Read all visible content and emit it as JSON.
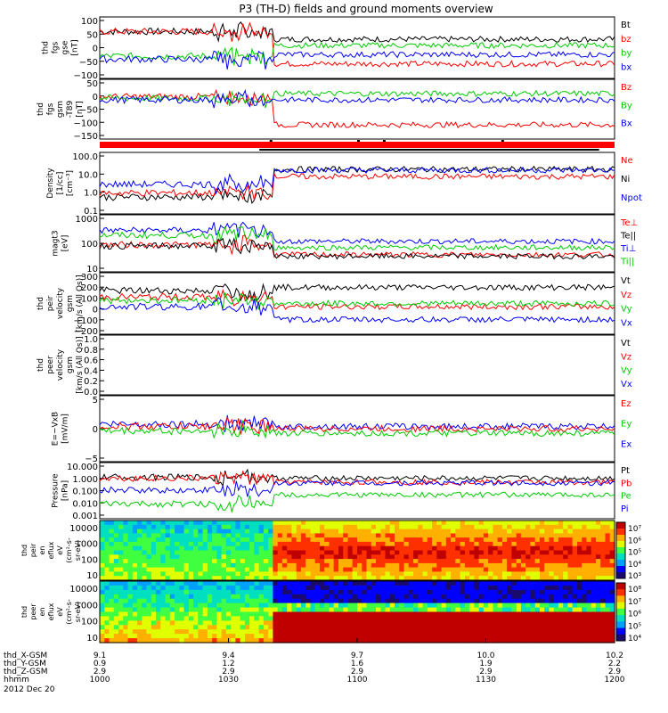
{
  "chart_data": {
    "type": "line",
    "title": "P3 (TH-D) fields and ground moments overview",
    "x_ticks": [
      "9.1",
      "9.4",
      "9.7",
      "10.0",
      "10.2"
    ],
    "time_ticks": [
      "1000",
      "1030",
      "1100",
      "1130",
      "1200"
    ],
    "ephemeris": [
      {
        "label": "thd_X-GSM",
        "values": [
          "9.1",
          "9.4",
          "9.7",
          "10.0",
          "10.2"
        ]
      },
      {
        "label": "thd_Y-GSM",
        "values": [
          "0.9",
          "1.2",
          "1.6",
          "1.9",
          "2.2"
        ]
      },
      {
        "label": "thd_Z-GSM",
        "values": [
          "2.9",
          "2.9",
          "2.9",
          "2.9",
          "2.9"
        ]
      },
      {
        "label": "hhmm",
        "values": [
          "1000",
          "1030",
          "1100",
          "1130",
          "1200"
        ]
      }
    ],
    "date": "2012 Dec 20",
    "panels": [
      {
        "id": "fgs-gse",
        "ylabel": [
          "thd",
          "fgs",
          "gse",
          "[nT]"
        ],
        "yticks": [
          "100",
          "50",
          "0",
          "−50",
          "−100"
        ],
        "legend": [
          {
            "t": "Bt",
            "c": "#000000"
          },
          {
            "t": "bz",
            "c": "#ff0000"
          },
          {
            "t": "by",
            "c": "#00cc00"
          },
          {
            "t": "bx",
            "c": "#0000ff"
          }
        ]
      },
      {
        "id": "fgs-gsm",
        "ylabel": [
          "thd",
          "fgs",
          "gsm",
          "-T89",
          "[nT]"
        ],
        "yticks": [
          "50",
          "0",
          "−50",
          "−100",
          "−150"
        ],
        "legend": [
          {
            "t": "Bz",
            "c": "#ff0000"
          },
          {
            "t": "By",
            "c": "#00cc00"
          },
          {
            "t": "Bx",
            "c": "#0000ff"
          }
        ]
      },
      {
        "id": "density",
        "ylabel": [
          "Density",
          "[1/cc]",
          "[cm⁻³]"
        ],
        "yticks": [
          "100.0",
          "10.0",
          "1.0",
          "0.1"
        ],
        "legend": [
          {
            "t": "Ne",
            "c": "#ff0000"
          },
          {
            "t": "Ni",
            "c": "#000000"
          },
          {
            "t": "Npot",
            "c": "#0000ff"
          }
        ]
      },
      {
        "id": "temperature",
        "ylabel": [
          "magt3",
          "[eV]"
        ],
        "yticks": [
          "1000",
          "100",
          "10"
        ],
        "legend": [
          {
            "t": "Te⊥",
            "c": "#ff0000"
          },
          {
            "t": "Te||",
            "c": "#000000"
          },
          {
            "t": "Ti⊥",
            "c": "#0000ff"
          },
          {
            "t": "Ti||",
            "c": "#00cc00"
          }
        ]
      },
      {
        "id": "peir-velocity",
        "ylabel": [
          "thd",
          "peir",
          "velocity",
          "gsm",
          "[km/s (All Qs)]"
        ],
        "yticks": [
          "300",
          "200",
          "100",
          "0",
          "−100",
          "−200"
        ],
        "legend": [
          {
            "t": "Vt",
            "c": "#000000"
          },
          {
            "t": "Vz",
            "c": "#ff0000"
          },
          {
            "t": "Vy",
            "c": "#00cc00"
          },
          {
            "t": "Vx",
            "c": "#0000ff"
          }
        ]
      },
      {
        "id": "peer-velocity",
        "ylabel": [
          "thd",
          "peer",
          "velocity",
          "gsm",
          "[km/s (All Qs)]"
        ],
        "yticks": [
          "1.0",
          "0.8",
          "0.6",
          "0.4",
          "0.2",
          "0.0"
        ],
        "legend": [
          {
            "t": "Vt",
            "c": "#000000"
          },
          {
            "t": "Vz",
            "c": "#ff0000"
          },
          {
            "t": "Vy",
            "c": "#00cc00"
          },
          {
            "t": "Vx",
            "c": "#0000ff"
          }
        ]
      },
      {
        "id": "efield",
        "ylabel": [
          "E=−VxB",
          "[mV/m]"
        ],
        "yticks": [
          "5",
          "0",
          "−5"
        ],
        "legend": [
          {
            "t": "Ez",
            "c": "#ff0000"
          },
          {
            "t": "Ey",
            "c": "#00cc00"
          },
          {
            "t": "Ex",
            "c": "#0000ff"
          }
        ]
      },
      {
        "id": "pressure",
        "ylabel": [
          "Pressure",
          "[nPa]"
        ],
        "yticks": [
          "10.000",
          "1.000",
          "0.100",
          "0.010",
          "0.001"
        ],
        "legend": [
          {
            "t": "Pt",
            "c": "#000000"
          },
          {
            "t": "Pb",
            "c": "#ff0000"
          },
          {
            "t": "Pe",
            "c": "#00cc00"
          },
          {
            "t": "Pi",
            "c": "#0000ff"
          }
        ]
      }
    ],
    "spectrograms": [
      {
        "id": "peir-eflux",
        "ylabel": [
          "thd",
          "peir",
          "en",
          "eflux",
          "eV",
          "(cm²-s-",
          "sr-eV)"
        ],
        "yticks": [
          "10000",
          "1000",
          "100",
          "10"
        ],
        "cbar": [
          "10⁷",
          "10⁶",
          "10⁵",
          "10⁴",
          "10³"
        ]
      },
      {
        "id": "peer-eflux",
        "ylabel": [
          "thd",
          "peer",
          "en",
          "eflux",
          "eV",
          "(cm²-s-",
          "sr-eV)"
        ],
        "yticks": [
          "10000",
          "1000",
          "100",
          "10"
        ],
        "cbar": [
          "10⁸",
          "10⁷",
          "10⁶",
          "10⁵",
          "10⁴"
        ]
      }
    ],
    "series_shape": {
      "fgs-gse": [
        {
          "c": "#000000",
          "pre": 80,
          "post": 55
        },
        {
          "c": "#ff0000",
          "pre": 80,
          "post": -25
        },
        {
          "c": "#00cc00",
          "pre": 0,
          "post": 35
        },
        {
          "c": "#0000ff",
          "pre": -10,
          "post": 5
        }
      ],
      "fgs-gsm": [
        {
          "c": "#ff0000",
          "pre": 10,
          "post": -80
        },
        {
          "c": "#00cc00",
          "pre": 5,
          "post": 20
        },
        {
          "c": "#0000ff",
          "pre": 0,
          "post": 0
        }
      ],
      "density": [
        {
          "c": "#000000",
          "pre": 0.6,
          "post": 20
        },
        {
          "c": "#ff0000",
          "pre": 1.0,
          "post": 8
        },
        {
          "c": "#0000ff",
          "pre": 3,
          "post": 18
        }
      ],
      "temperature": [
        {
          "c": "#0000ff",
          "pre": 2500,
          "post": 500
        },
        {
          "c": "#00cc00",
          "pre": 1200,
          "post": 200
        },
        {
          "c": "#ff0000",
          "pre": 300,
          "post": 70
        },
        {
          "c": "#000000",
          "pre": 250,
          "post": 55
        }
      ],
      "peir-velocity": [
        {
          "c": "#000000",
          "pre": 50,
          "post": 60
        },
        {
          "c": "#ff0000",
          "pre": 30,
          "post": 0
        },
        {
          "c": "#00cc00",
          "pre": 20,
          "post": 10
        },
        {
          "c": "#0000ff",
          "pre": 0,
          "post": -40
        }
      ],
      "efield": [
        {
          "c": "#0000ff",
          "pre": 1,
          "post": 0.5
        },
        {
          "c": "#ff0000",
          "pre": 0.5,
          "post": 0
        },
        {
          "c": "#00cc00",
          "pre": -0.5,
          "post": -1
        }
      ],
      "pressure": [
        {
          "c": "#000000",
          "pre": 1.8,
          "post": 1.5
        },
        {
          "c": "#ff0000",
          "pre": 1.5,
          "post": 0.7
        },
        {
          "c": "#0000ff",
          "pre": 0.15,
          "post": 0.6
        },
        {
          "c": "#00cc00",
          "pre": 0.01,
          "post": 0.06
        }
      ]
    }
  }
}
